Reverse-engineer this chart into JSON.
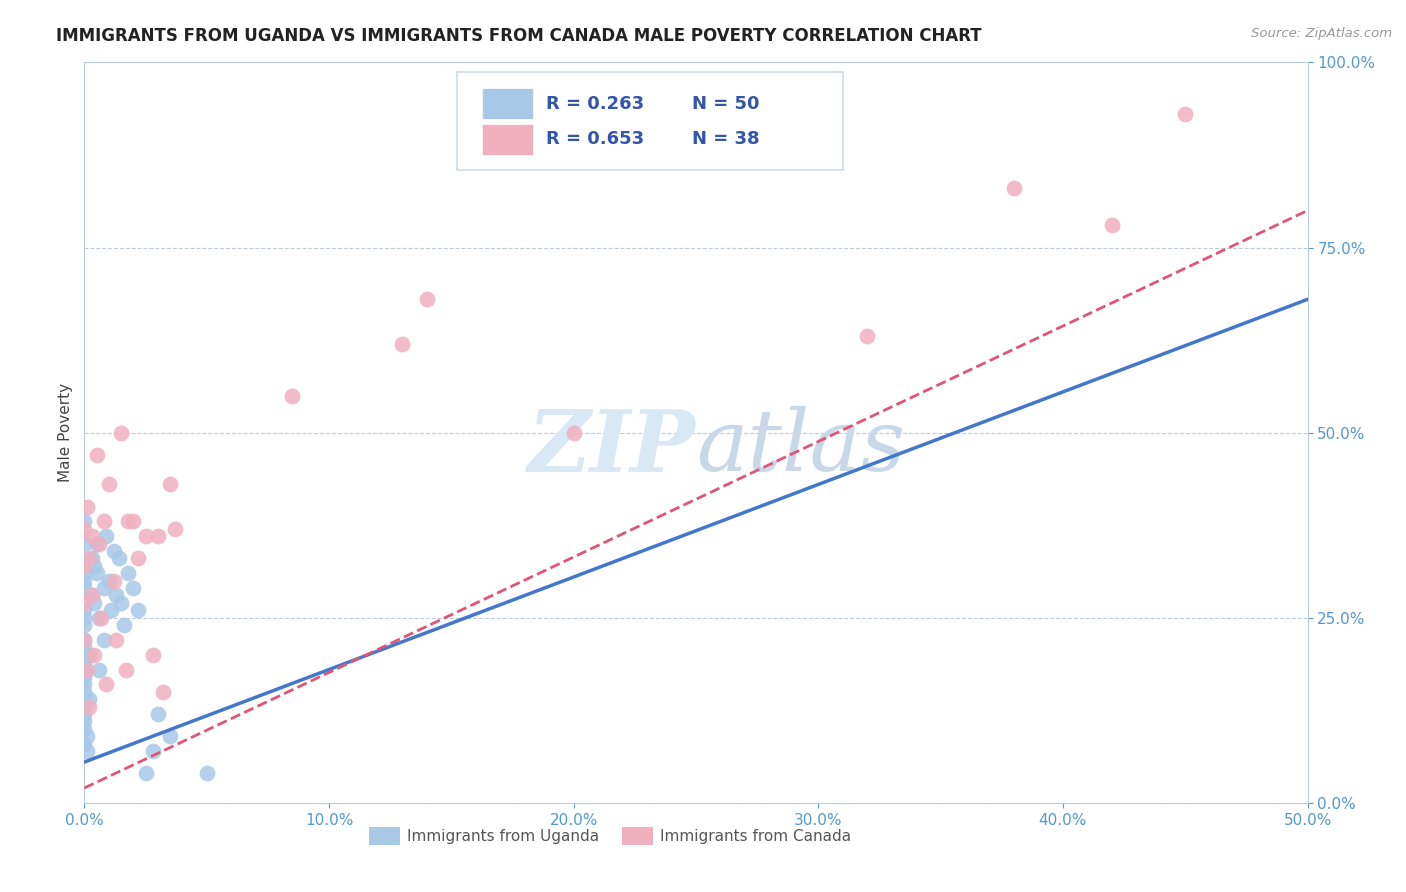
{
  "title": "IMMIGRANTS FROM UGANDA VS IMMIGRANTS FROM CANADA MALE POVERTY CORRELATION CHART",
  "source": "Source: ZipAtlas.com",
  "ylabel": "Male Poverty",
  "xlim": [
    0.0,
    0.5
  ],
  "ylim": [
    0.0,
    1.0
  ],
  "xticks": [
    0.0,
    0.1,
    0.2,
    0.3,
    0.4,
    0.5
  ],
  "yticks": [
    0.0,
    0.25,
    0.5,
    0.75,
    1.0
  ],
  "uganda_color": "#A8C8E8",
  "canada_color": "#F0B0C0",
  "uganda_R": 0.263,
  "uganda_N": 50,
  "canada_R": 0.653,
  "canada_N": 38,
  "uganda_line_color": "#4477CC",
  "canada_line_color": "#E05575",
  "grid_color": "#BBCCDD",
  "axis_color": "#5599CC",
  "legend_color": "#3355AA",
  "watermark_color": "#D8E8F5",
  "uganda_scatter": [
    [
      0.0,
      0.38
    ],
    [
      0.0,
      0.35
    ],
    [
      0.0,
      0.31
    ],
    [
      0.0,
      0.3
    ],
    [
      0.0,
      0.29
    ],
    [
      0.0,
      0.26
    ],
    [
      0.0,
      0.25
    ],
    [
      0.0,
      0.24
    ],
    [
      0.0,
      0.22
    ],
    [
      0.0,
      0.21
    ],
    [
      0.0,
      0.19
    ],
    [
      0.0,
      0.18
    ],
    [
      0.0,
      0.17
    ],
    [
      0.0,
      0.16
    ],
    [
      0.0,
      0.15
    ],
    [
      0.0,
      0.13
    ],
    [
      0.0,
      0.12
    ],
    [
      0.0,
      0.11
    ],
    [
      0.0,
      0.1
    ],
    [
      0.0,
      0.08
    ],
    [
      0.001,
      0.07
    ],
    [
      0.001,
      0.09
    ],
    [
      0.002,
      0.14
    ],
    [
      0.002,
      0.2
    ],
    [
      0.003,
      0.28
    ],
    [
      0.003,
      0.33
    ],
    [
      0.004,
      0.32
    ],
    [
      0.004,
      0.27
    ],
    [
      0.005,
      0.35
    ],
    [
      0.005,
      0.31
    ],
    [
      0.006,
      0.25
    ],
    [
      0.006,
      0.18
    ],
    [
      0.008,
      0.29
    ],
    [
      0.008,
      0.22
    ],
    [
      0.009,
      0.36
    ],
    [
      0.01,
      0.3
    ],
    [
      0.011,
      0.26
    ],
    [
      0.012,
      0.34
    ],
    [
      0.013,
      0.28
    ],
    [
      0.014,
      0.33
    ],
    [
      0.015,
      0.27
    ],
    [
      0.016,
      0.24
    ],
    [
      0.018,
      0.31
    ],
    [
      0.02,
      0.29
    ],
    [
      0.022,
      0.26
    ],
    [
      0.025,
      0.04
    ],
    [
      0.028,
      0.07
    ],
    [
      0.03,
      0.12
    ],
    [
      0.035,
      0.09
    ],
    [
      0.05,
      0.04
    ]
  ],
  "canada_scatter": [
    [
      0.0,
      0.37
    ],
    [
      0.0,
      0.32
    ],
    [
      0.0,
      0.27
    ],
    [
      0.0,
      0.22
    ],
    [
      0.001,
      0.18
    ],
    [
      0.001,
      0.4
    ],
    [
      0.002,
      0.33
    ],
    [
      0.002,
      0.13
    ],
    [
      0.003,
      0.28
    ],
    [
      0.003,
      0.36
    ],
    [
      0.004,
      0.2
    ],
    [
      0.005,
      0.47
    ],
    [
      0.006,
      0.35
    ],
    [
      0.007,
      0.25
    ],
    [
      0.008,
      0.38
    ],
    [
      0.009,
      0.16
    ],
    [
      0.01,
      0.43
    ],
    [
      0.012,
      0.3
    ],
    [
      0.013,
      0.22
    ],
    [
      0.015,
      0.5
    ],
    [
      0.017,
      0.18
    ],
    [
      0.018,
      0.38
    ],
    [
      0.02,
      0.38
    ],
    [
      0.022,
      0.33
    ],
    [
      0.025,
      0.36
    ],
    [
      0.028,
      0.2
    ],
    [
      0.03,
      0.36
    ],
    [
      0.032,
      0.15
    ],
    [
      0.035,
      0.43
    ],
    [
      0.037,
      0.37
    ],
    [
      0.085,
      0.55
    ],
    [
      0.13,
      0.62
    ],
    [
      0.14,
      0.68
    ],
    [
      0.2,
      0.5
    ],
    [
      0.32,
      0.63
    ],
    [
      0.38,
      0.83
    ],
    [
      0.42,
      0.78
    ],
    [
      0.45,
      0.93
    ]
  ],
  "uganda_line": {
    "x0": 0.0,
    "y0": 0.055,
    "x1": 0.5,
    "y1": 0.68
  },
  "canada_line": {
    "x0": 0.0,
    "y0": 0.02,
    "x1": 0.5,
    "y1": 0.8
  }
}
